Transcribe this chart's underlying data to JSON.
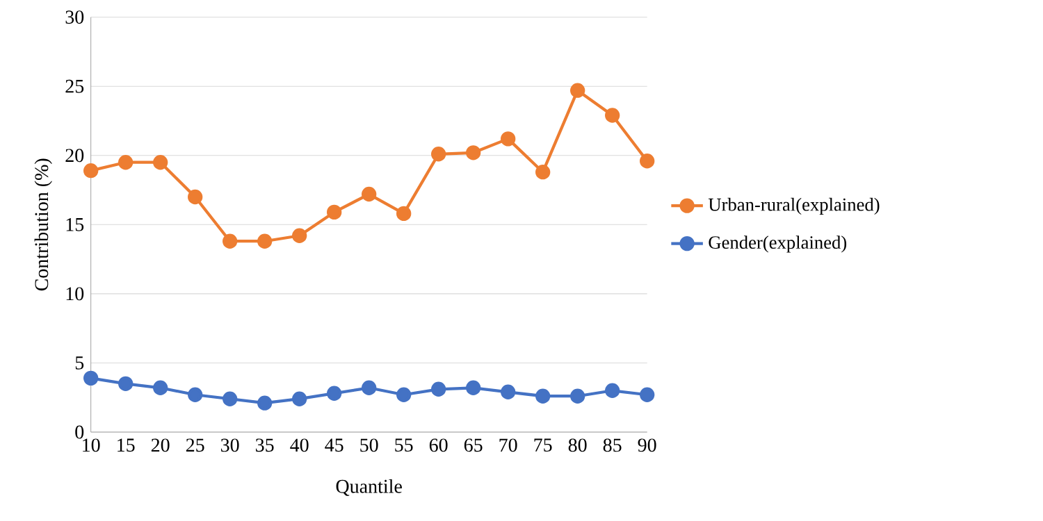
{
  "chart_data": {
    "type": "line",
    "xlabel": "Quantile",
    "ylabel": "Contribution (%)",
    "categories": [
      "10",
      "15",
      "20",
      "25",
      "30",
      "35",
      "40",
      "45",
      "50",
      "55",
      "60",
      "65",
      "70",
      "75",
      "80",
      "85",
      "90"
    ],
    "series": [
      {
        "name": "Urban-rural(explained)",
        "color": "#ed7d31",
        "values": [
          18.9,
          19.5,
          19.5,
          17.0,
          13.8,
          13.8,
          14.2,
          15.9,
          17.2,
          15.8,
          20.1,
          20.2,
          21.2,
          18.8,
          24.7,
          22.9,
          19.6
        ]
      },
      {
        "name": "Gender(explained)",
        "color": "#4472c4",
        "values": [
          3.9,
          3.5,
          3.2,
          2.7,
          2.4,
          2.1,
          2.4,
          2.8,
          3.2,
          2.7,
          3.1,
          3.2,
          2.9,
          2.6,
          2.6,
          3.0,
          2.7
        ]
      }
    ],
    "ylim": [
      0,
      30
    ],
    "yticks": [
      0,
      5,
      10,
      15,
      20,
      25,
      30
    ],
    "grid": "y",
    "legend": "right",
    "marker": "circle",
    "line_style": "solid"
  }
}
